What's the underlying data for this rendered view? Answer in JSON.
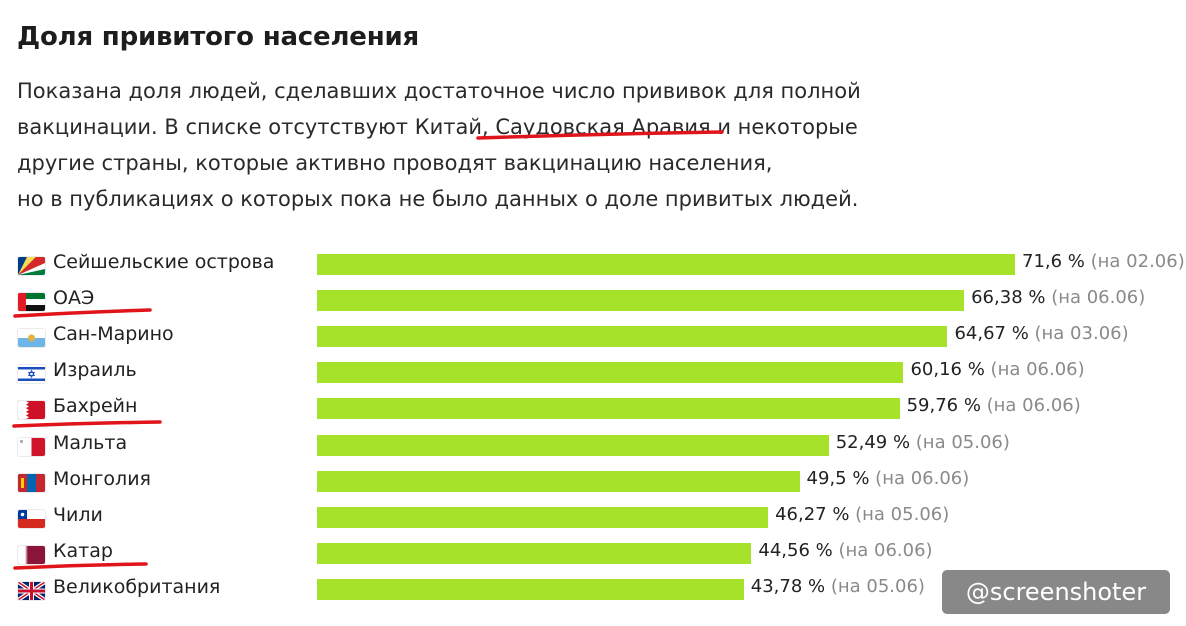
{
  "title": "Доля привитого населения",
  "description": [
    "Показана доля людей, сделавших достаточное число прививок для полной",
    "вакцинации. В списке отсутствуют Китай, Саудовская Аравия и некоторые",
    "другие страны, которые активно проводят вакцинацию населения,",
    "но в публикациях о которых пока не было данных о доле привитых людей."
  ],
  "watermark": "@screenshoter",
  "colors": {
    "bar": "#a6e22a",
    "annotation": "#e0141b",
    "date": "#8a8a8a"
  },
  "chart_data": {
    "type": "bar",
    "orientation": "horizontal",
    "unit": "%",
    "xlim": [
      0,
      100
    ],
    "categories": [
      "Сейшельские острова",
      "ОАЭ",
      "Сан-Марино",
      "Израиль",
      "Бахрейн",
      "Мальта",
      "Монголия",
      "Чили",
      "Катар",
      "Великобритания"
    ],
    "values": [
      71.6,
      66.38,
      64.67,
      60.16,
      59.76,
      52.49,
      49.5,
      46.27,
      44.56,
      43.78
    ],
    "value_labels": [
      "71,6 %",
      "66,38 %",
      "64,67 %",
      "60,16 %",
      "59,76 %",
      "52,49 %",
      "49,5 %",
      "46,27 %",
      "44,56 %",
      "43,78 %"
    ],
    "dates": [
      "(на 02.06)",
      "(на 06.06)",
      "(на 03.06)",
      "(на 06.06)",
      "(на 06.06)",
      "(на 05.06)",
      "(на 06.06)",
      "(на 05.06)",
      "(на 06.06)",
      "(на 05.06)"
    ],
    "flags": [
      "seychelles-flag",
      "uae-flag",
      "san-marino-flag",
      "israel-flag",
      "bahrain-flag",
      "malta-flag",
      "mongolia-flag",
      "chile-flag",
      "qatar-flag",
      "uk-flag"
    ],
    "underlined": [
      "ОАЭ",
      "Бахрейн",
      "Катар"
    ]
  }
}
